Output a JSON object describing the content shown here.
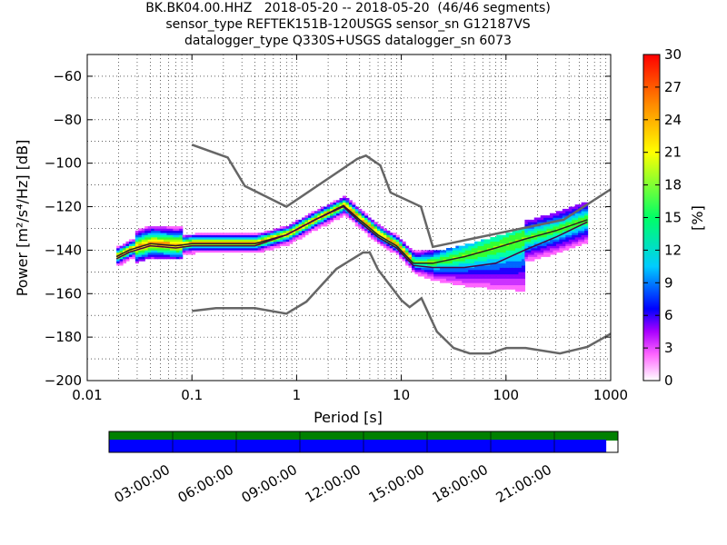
{
  "title": {
    "line1": "BK.BK04.00.HHZ   2018-05-20 -- 2018-05-20  (46/46 segments)",
    "line2": "sensor_type REFTEK151B-120USGS sensor_sn G12187VS",
    "line3": "datalogger_type Q330S+USGS datalogger_sn 6073"
  },
  "colors": {
    "model_lines": "#666666",
    "mean_line": "#222222",
    "mode_line": "#4a0040",
    "timeline_top": "#008000",
    "timeline_bottom": "#0000ff"
  },
  "chart_data": [
    {
      "type": "heatmap",
      "title": "BK.BK04.00.HHZ   2018-05-20 -- 2018-05-20  (46/46 segments)",
      "xlabel": "Period [s]",
      "ylabel": "Power [m²/s⁴/Hz] [dB]",
      "xscale": "log",
      "xlim": [
        0.01,
        1000
      ],
      "ylim": [
        -200,
        -50
      ],
      "xticks": [
        "0.01",
        "0.1",
        "1",
        "10",
        "100",
        "1000"
      ],
      "yticks": [
        "−200",
        "−180",
        "−160",
        "−140",
        "−120",
        "−100",
        "−80",
        "−60"
      ],
      "grid": "dotted",
      "colorbar": {
        "label": "[%]",
        "range": [
          0,
          30
        ],
        "ticks": [
          "0",
          "3",
          "6",
          "9",
          "12",
          "15",
          "18",
          "21",
          "24",
          "27",
          "30"
        ]
      },
      "series": [
        {
          "name": "",
          "role": "high-noise model",
          "points": [
            [
              0.1,
              -91.5
            ],
            [
              0.22,
              -97.4
            ],
            [
              0.32,
              -110.5
            ],
            [
              0.8,
              -120
            ],
            [
              3.8,
              -98
            ],
            [
              4.6,
              -96.5
            ],
            [
              6.3,
              -101
            ],
            [
              7.9,
              -113.5
            ],
            [
              15.4,
              -120
            ],
            [
              20,
              -138.5
            ],
            [
              354.8,
              -126
            ],
            [
              1000,
              -112
            ]
          ]
        },
        {
          "name": "",
          "role": "low-noise model",
          "points": [
            [
              0.1,
              -168
            ],
            [
              0.17,
              -166.7
            ],
            [
              0.4,
              -166.7
            ],
            [
              0.8,
              -169.2
            ],
            [
              1.24,
              -163.7
            ],
            [
              2.4,
              -148.6
            ],
            [
              4.3,
              -141.1
            ],
            [
              5,
              -141.1
            ],
            [
              6,
              -149
            ],
            [
              10,
              -163
            ],
            [
              12,
              -166.2
            ],
            [
              15.6,
              -162.1
            ],
            [
              21.9,
              -177.5
            ],
            [
              31.6,
              -185
            ],
            [
              45,
              -187.5
            ],
            [
              70,
              -187.5
            ],
            [
              101,
              -185
            ],
            [
              154,
              -185
            ],
            [
              328,
              -187.5
            ],
            [
              600,
              -184.5
            ],
            [
              1000,
              -178.5
            ]
          ]
        },
        {
          "name": "",
          "role": "mean",
          "points": [
            [
              0.019,
              -143
            ],
            [
              0.025,
              -140
            ],
            [
              0.04,
              -137
            ],
            [
              0.07,
              -138
            ],
            [
              0.1,
              -137
            ],
            [
              0.2,
              -137
            ],
            [
              0.4,
              -137
            ],
            [
              0.8,
              -133
            ],
            [
              1.5,
              -126
            ],
            [
              2.8,
              -119.5
            ],
            [
              4,
              -126
            ],
            [
              6,
              -133
            ],
            [
              9,
              -138
            ],
            [
              13,
              -146
            ],
            [
              20,
              -146
            ],
            [
              40,
              -143
            ],
            [
              80,
              -139
            ],
            [
              150,
              -135
            ],
            [
              300,
              -131
            ],
            [
              600,
              -126
            ]
          ]
        },
        {
          "name": "",
          "role": "mode",
          "points": [
            [
              0.019,
              -144
            ],
            [
              0.025,
              -141
            ],
            [
              0.04,
              -138
            ],
            [
              0.07,
              -139
            ],
            [
              0.1,
              -138
            ],
            [
              0.2,
              -138
            ],
            [
              0.4,
              -138
            ],
            [
              0.8,
              -133
            ],
            [
              1.5,
              -126
            ],
            [
              2.8,
              -120
            ],
            [
              4,
              -127
            ],
            [
              6,
              -134
            ],
            [
              9,
              -139
            ],
            [
              13,
              -147
            ],
            [
              20,
              -148
            ],
            [
              40,
              -148
            ],
            [
              80,
              -146
            ],
            [
              150,
              -140
            ],
            [
              300,
              -134
            ],
            [
              600,
              -127
            ]
          ]
        }
      ]
    },
    {
      "type": "timeline",
      "xticks": [
        "03:00:00",
        "06:00:00",
        "09:00:00",
        "12:00:00",
        "15:00:00",
        "18:00:00",
        "21:00:00"
      ],
      "bars": [
        {
          "name": "",
          "coverage": [
            0.0,
            1.0
          ],
          "color": "#008000"
        },
        {
          "name": "",
          "coverage": [
            0.0,
            0.977
          ],
          "color": "#0000ff"
        }
      ]
    }
  ]
}
